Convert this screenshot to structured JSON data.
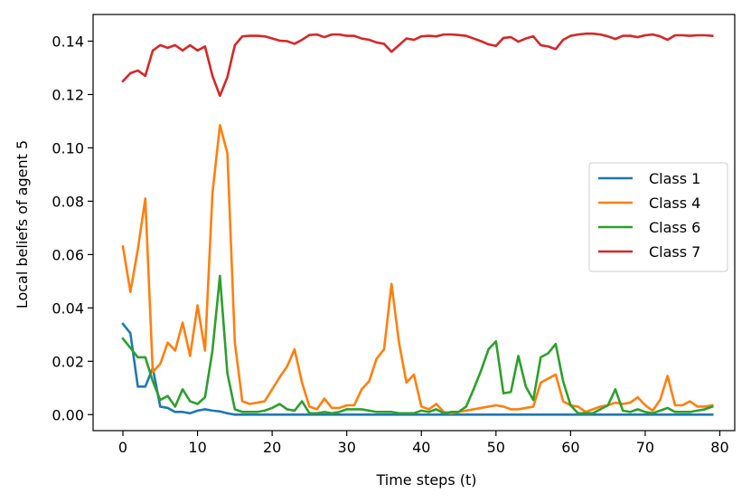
{
  "chart_data": {
    "type": "line",
    "title": "",
    "xlabel": "Time steps (t)",
    "ylabel": "Local beliefs of agent 5",
    "xlim": [
      -4,
      82
    ],
    "ylim": [
      -0.006,
      0.15
    ],
    "xticks": [
      0,
      10,
      20,
      30,
      40,
      50,
      60,
      70,
      80
    ],
    "yticks": [
      0.0,
      0.02,
      0.04,
      0.06,
      0.08,
      0.1,
      0.12,
      0.14
    ],
    "ytick_labels": [
      "0.00",
      "0.02",
      "0.04",
      "0.06",
      "0.08",
      "0.10",
      "0.12",
      "0.14"
    ],
    "xtick_labels": [
      "0",
      "10",
      "20",
      "30",
      "40",
      "50",
      "60",
      "70",
      "80"
    ],
    "grid": false,
    "legend_position": "center-right",
    "x": [
      0,
      1,
      2,
      3,
      4,
      5,
      6,
      7,
      8,
      9,
      10,
      11,
      12,
      13,
      14,
      15,
      16,
      17,
      18,
      19,
      20,
      21,
      22,
      23,
      24,
      25,
      26,
      27,
      28,
      29,
      30,
      31,
      32,
      33,
      34,
      35,
      36,
      37,
      38,
      39,
      40,
      41,
      42,
      43,
      44,
      45,
      46,
      47,
      48,
      49,
      50,
      51,
      52,
      53,
      54,
      55,
      56,
      57,
      58,
      59,
      60,
      61,
      62,
      63,
      64,
      65,
      66,
      67,
      68,
      69,
      70,
      71,
      72,
      73,
      74,
      75,
      76,
      77,
      78,
      79
    ],
    "series": [
      {
        "name": "Class 1",
        "color": "#1f77b4",
        "values": [
          0.034,
          0.0305,
          0.0105,
          0.0105,
          0.0175,
          0.003,
          0.0025,
          0.001,
          0.001,
          0.0005,
          0.0015,
          0.002,
          0.0015,
          0.0012,
          0.0005,
          0,
          0,
          0,
          0,
          0,
          0,
          0,
          0,
          0,
          0,
          0,
          0,
          0,
          0,
          0,
          0,
          0,
          0,
          0,
          0,
          0,
          0,
          0,
          0,
          0,
          0,
          0,
          0,
          0,
          0,
          0,
          0,
          0,
          0,
          0,
          0,
          0,
          0,
          0,
          0,
          0,
          0,
          0,
          0,
          0,
          0,
          0,
          0,
          0,
          0,
          0,
          0,
          0,
          0,
          0,
          0,
          0,
          0,
          0,
          0,
          0,
          0,
          0,
          0,
          0
        ]
      },
      {
        "name": "Class 4",
        "color": "#ff7f0e",
        "values": [
          0.063,
          0.046,
          0.062,
          0.081,
          0.016,
          0.019,
          0.027,
          0.024,
          0.0345,
          0.022,
          0.041,
          0.024,
          0.083,
          0.1085,
          0.098,
          0.027,
          0.005,
          0.004,
          0.0045,
          0.005,
          0.0095,
          0.014,
          0.018,
          0.0245,
          0.012,
          0.003,
          0.002,
          0.006,
          0.0025,
          0.0025,
          0.0035,
          0.0035,
          0.0095,
          0.0125,
          0.021,
          0.0245,
          0.049,
          0.027,
          0.012,
          0.015,
          0.003,
          0.002,
          0.004,
          0.001,
          0.0005,
          0.001,
          0.0015,
          0.002,
          0.0025,
          0.003,
          0.0035,
          0.003,
          0.002,
          0.002,
          0.0025,
          0.003,
          0.012,
          0.0135,
          0.015,
          0.005,
          0.0035,
          0.003,
          0.001,
          0.002,
          0.003,
          0.0035,
          0.0045,
          0.004,
          0.0045,
          0.0065,
          0.0035,
          0.0015,
          0.0055,
          0.0145,
          0.0035,
          0.0035,
          0.005,
          0.003,
          0.003,
          0.0035
        ]
      },
      {
        "name": "Class 6",
        "color": "#2ca02c",
        "values": [
          0.0285,
          0.025,
          0.0215,
          0.0215,
          0.0125,
          0.0055,
          0.007,
          0.003,
          0.0095,
          0.005,
          0.004,
          0.0065,
          0.024,
          0.052,
          0.0155,
          0.002,
          0.001,
          0.001,
          0.001,
          0.0015,
          0.0025,
          0.004,
          0.002,
          0.0015,
          0.005,
          0.0005,
          0.0005,
          0.001,
          0.0005,
          0.001,
          0.002,
          0.002,
          0.002,
          0.0015,
          0.001,
          0.001,
          0.001,
          0.0005,
          0.0005,
          0.0005,
          0.0015,
          0.001,
          0.002,
          0.0005,
          0.001,
          0.001,
          0.003,
          0.0095,
          0.0165,
          0.0245,
          0.0275,
          0.008,
          0.0085,
          0.022,
          0.0105,
          0.0055,
          0.0215,
          0.023,
          0.0265,
          0.0125,
          0.0035,
          0.0005,
          0.0005,
          0.0005,
          0.002,
          0.0035,
          0.0095,
          0.0015,
          0.001,
          0.002,
          0.001,
          0.0005,
          0.0015,
          0.0025,
          0.001,
          0.001,
          0.001,
          0.0015,
          0.002,
          0.003
        ]
      },
      {
        "name": "Class 7",
        "color": "#d62728",
        "values": [
          0.125,
          0.128,
          0.129,
          0.127,
          0.1365,
          0.1385,
          0.1375,
          0.1385,
          0.1365,
          0.1385,
          0.1365,
          0.138,
          0.127,
          0.1195,
          0.1265,
          0.1385,
          0.1418,
          0.142,
          0.142,
          0.1418,
          0.141,
          0.1402,
          0.14,
          0.139,
          0.1405,
          0.1423,
          0.1425,
          0.1415,
          0.1425,
          0.1425,
          0.142,
          0.142,
          0.141,
          0.1405,
          0.1395,
          0.139,
          0.136,
          0.1385,
          0.141,
          0.1405,
          0.1418,
          0.142,
          0.1418,
          0.1425,
          0.1425,
          0.1423,
          0.142,
          0.141,
          0.14,
          0.1388,
          0.1382,
          0.1412,
          0.1415,
          0.1398,
          0.141,
          0.1418,
          0.1385,
          0.138,
          0.137,
          0.1405,
          0.142,
          0.1425,
          0.1428,
          0.1428,
          0.1425,
          0.1418,
          0.1408,
          0.142,
          0.142,
          0.1415,
          0.1422,
          0.1425,
          0.1418,
          0.1405,
          0.1422,
          0.1422,
          0.142,
          0.1422,
          0.1422,
          0.142
        ]
      }
    ]
  }
}
